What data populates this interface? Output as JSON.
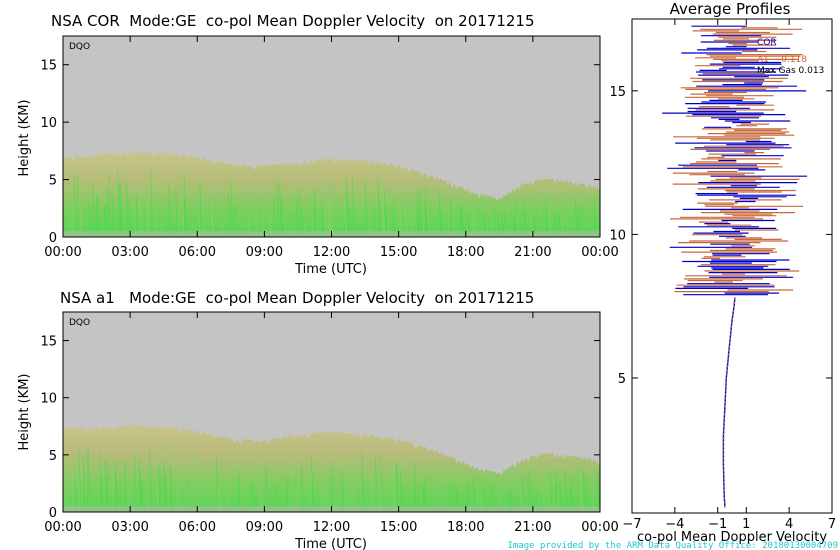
{
  "colors": {
    "background_plot": "#c4c4c4",
    "cloud_olive": "#b9b97a",
    "cloud_green": "#4cd84c",
    "cor_series": "#0000cc",
    "a1_series": "#c8683a",
    "credit_text": "#22c4d6"
  },
  "chart_data": [
    {
      "type": "heatmap",
      "title": "NSA COR  Mode:GE  co-pol Mean Doppler Velocity  on 20171215",
      "flag": "DQO",
      "xlabel": "Time (UTC)",
      "ylabel": "Height (KM)",
      "xticks": [
        "00:00",
        "03:00",
        "06:00",
        "09:00",
        "12:00",
        "15:00",
        "18:00",
        "21:00",
        "00:00"
      ],
      "yticks": [
        0,
        5,
        10,
        15
      ],
      "xlim_hours": [
        0,
        24
      ],
      "ylim": [
        0,
        17.5
      ],
      "cloud_top_km": [
        [
          0,
          7.0
        ],
        [
          1.5,
          7.2
        ],
        [
          3,
          7.4
        ],
        [
          4.5,
          7.3
        ],
        [
          6,
          7.0
        ],
        [
          7.5,
          6.3
        ],
        [
          9,
          6.2
        ],
        [
          10.5,
          6.5
        ],
        [
          12,
          6.9
        ],
        [
          13.5,
          6.7
        ],
        [
          15,
          6.3
        ],
        [
          16.5,
          5.4
        ],
        [
          17.5,
          4.6
        ],
        [
          18.5,
          3.8
        ],
        [
          19.5,
          3.4
        ],
        [
          20.5,
          4.6
        ],
        [
          21.5,
          5.1
        ],
        [
          22.5,
          4.9
        ],
        [
          23.5,
          4.6
        ],
        [
          24,
          4.3
        ]
      ]
    },
    {
      "type": "heatmap",
      "title": "NSA a1   Mode:GE  co-pol Mean Doppler Velocity  on 20171215",
      "flag": "DQO",
      "xlabel": "Time (UTC)",
      "ylabel": "Height (KM)",
      "xticks": [
        "00:00",
        "03:00",
        "06:00",
        "09:00",
        "12:00",
        "15:00",
        "18:00",
        "21:00",
        "00:00"
      ],
      "yticks": [
        0,
        5,
        10,
        15
      ],
      "xlim_hours": [
        0,
        24
      ],
      "ylim": [
        0,
        17.5
      ],
      "cloud_top_km": [
        [
          0,
          7.4
        ],
        [
          1.5,
          7.4
        ],
        [
          3,
          7.6
        ],
        [
          4.5,
          7.5
        ],
        [
          6,
          7.2
        ],
        [
          7.5,
          6.4
        ],
        [
          9,
          6.3
        ],
        [
          10.5,
          6.8
        ],
        [
          12,
          7.0
        ],
        [
          13.5,
          6.8
        ],
        [
          15,
          6.4
        ],
        [
          16.5,
          5.5
        ],
        [
          17.5,
          4.7
        ],
        [
          18.5,
          3.9
        ],
        [
          19.5,
          3.4
        ],
        [
          20.5,
          4.6
        ],
        [
          21.5,
          5.2
        ],
        [
          22.5,
          5.0
        ],
        [
          23.5,
          4.7
        ],
        [
          24,
          4.4
        ]
      ]
    },
    {
      "type": "line",
      "title": "Average Profiles",
      "xlabel": "co-pol Mean Doppler Velocity",
      "xticks": [
        -7,
        -4,
        -1,
        1,
        4,
        7
      ],
      "yticks": [
        5,
        10,
        15
      ],
      "xlim": [
        -7,
        7
      ],
      "ylim": [
        0.3,
        17.5
      ],
      "legend": {
        "series": [
          {
            "name": "COR",
            "value": ""
          },
          {
            "name": "A1",
            "value": "-0.118"
          }
        ],
        "note": "Max Gas 0.013"
      },
      "series": [
        {
          "name": "COR",
          "height_km": [
            0.5,
            1.0,
            2.0,
            3.0,
            4.0,
            5.0,
            6.0,
            7.0,
            7.5,
            7.8
          ],
          "velocity": [
            -0.5,
            -0.55,
            -0.6,
            -0.6,
            -0.5,
            -0.4,
            -0.2,
            0.0,
            0.15,
            0.2
          ]
        },
        {
          "name": "A1",
          "height_km": [
            0.5,
            1.0,
            2.0,
            3.0,
            4.0,
            5.0,
            6.0,
            7.0,
            7.5,
            7.8
          ],
          "velocity": [
            -0.5,
            -0.55,
            -0.6,
            -0.6,
            -0.5,
            -0.4,
            -0.2,
            0.0,
            0.15,
            0.2
          ]
        }
      ]
    }
  ],
  "credit": "Image provided by the ARM Data Quality Office: 20180130004709"
}
